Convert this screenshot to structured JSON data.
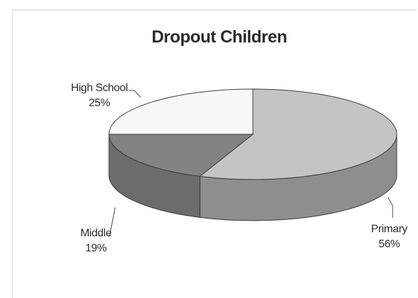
{
  "chart_data": {
    "type": "pie",
    "title": "Dropout Children",
    "slices": [
      {
        "label": "Primary",
        "value": 56,
        "value_label": "56%",
        "top_color": "#c4c4c4",
        "side_color": "#8e8e8e"
      },
      {
        "label": "Middle",
        "value": 19,
        "value_label": "19%",
        "top_color": "#838383",
        "side_color": "#6c6c6c"
      },
      {
        "label": "High School",
        "value": 25,
        "value_label": "25%",
        "top_color": "#f7f7f7",
        "side_color": "#d8d8d8"
      }
    ],
    "style": "3d"
  }
}
